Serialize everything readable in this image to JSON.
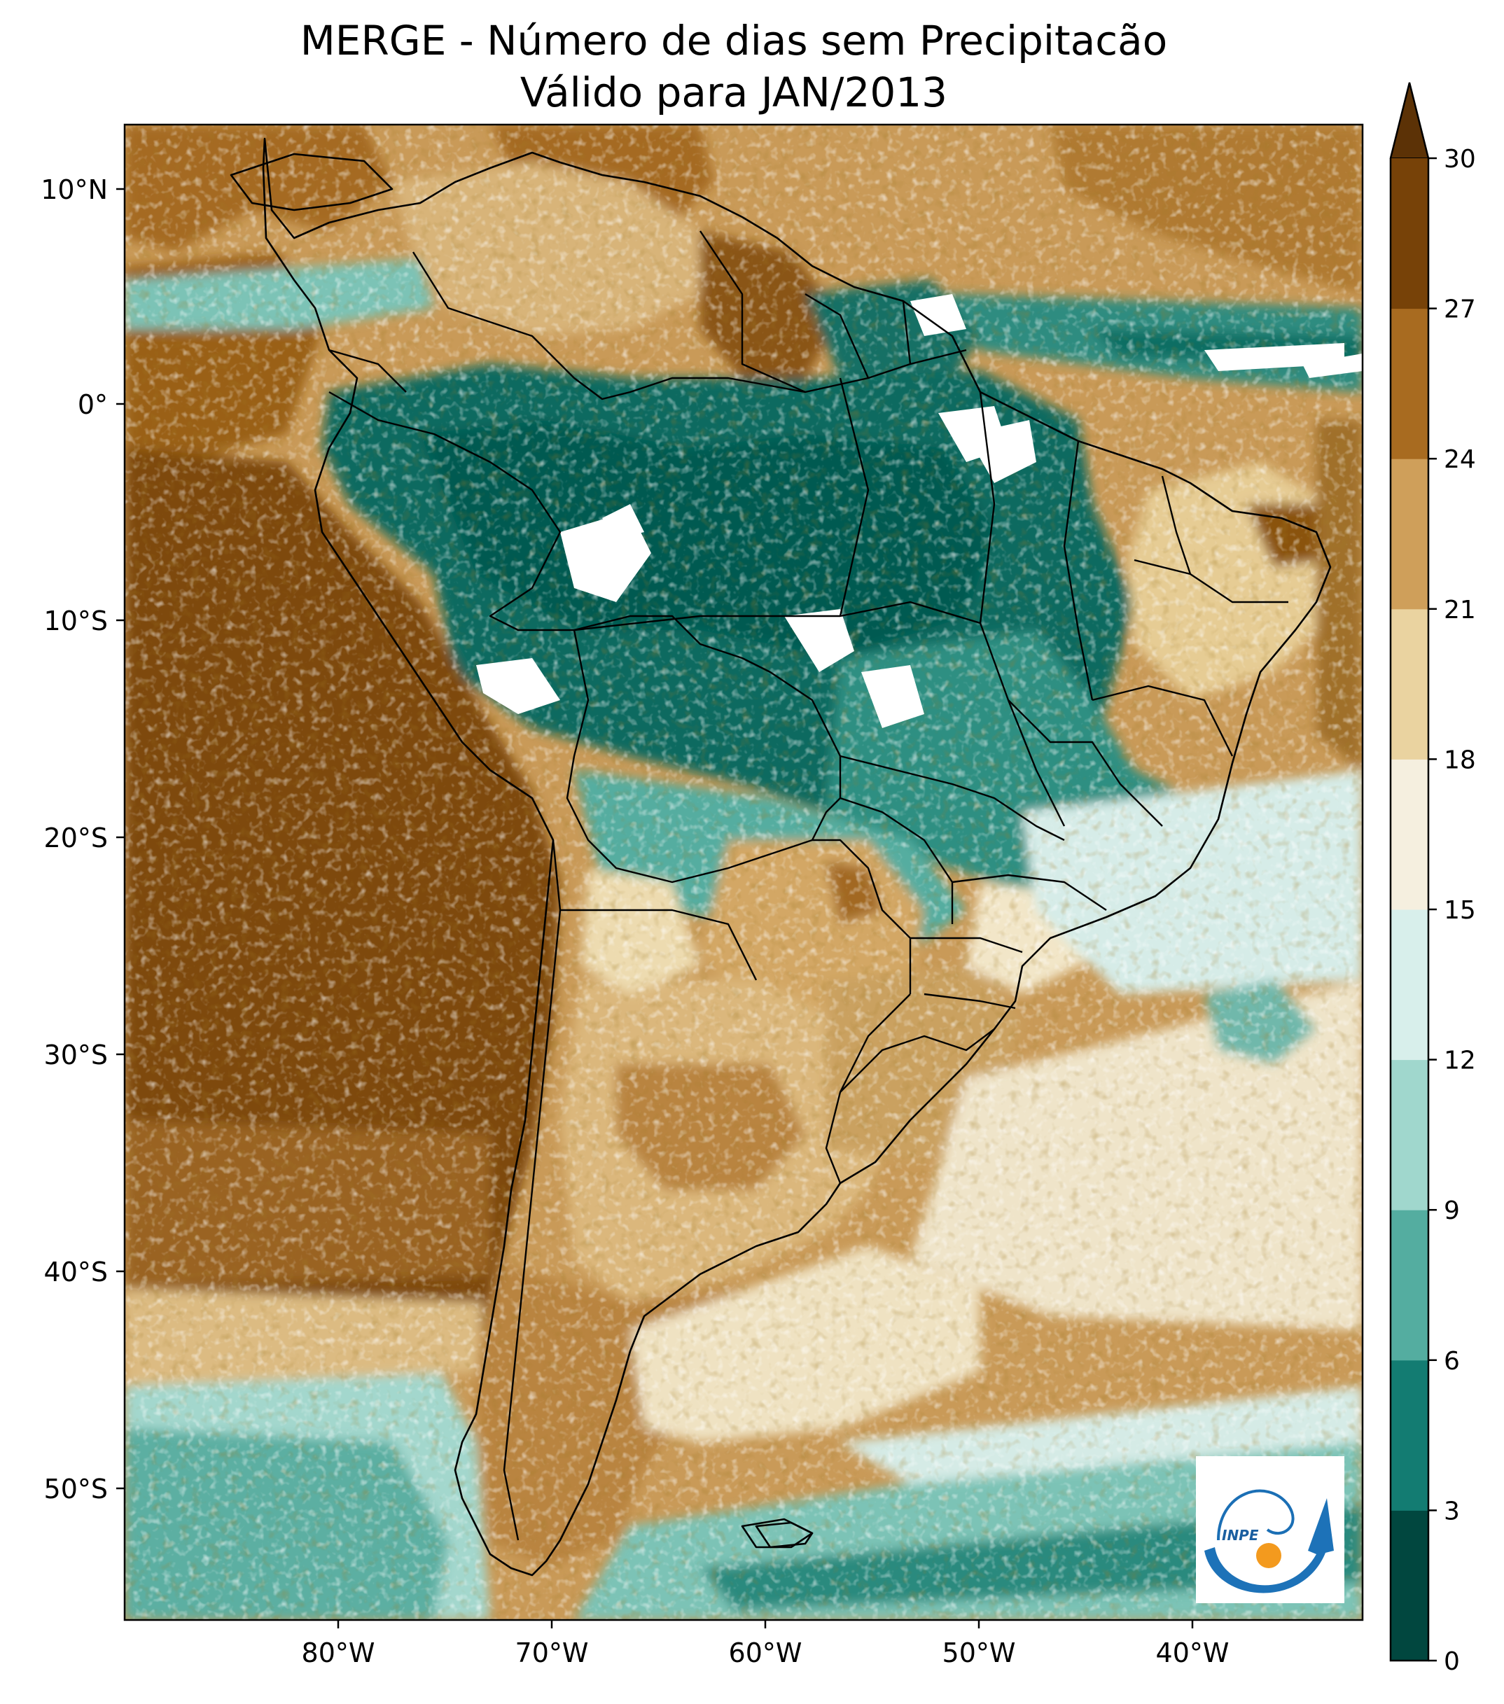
{
  "title": {
    "line1": "MERGE - Número de dias sem Precipitacão",
    "line2": "Válido para JAN/2013"
  },
  "map": {
    "lon_ticks": [
      "80°W",
      "70°W",
      "60°W",
      "50°W",
      "40°W"
    ],
    "lat_ticks": [
      "10°N",
      "0°",
      "10°S",
      "20°S",
      "30°S",
      "40°S",
      "50°S"
    ],
    "lon_range": [
      -90,
      -32
    ],
    "lat_range": [
      -56,
      13
    ],
    "regions": {
      "pacific_coastal": "dry (24-30 days)",
      "amazon": "wet (0-6 days)",
      "south_atlantic": "wet (6-12 days)",
      "argentina_pampas": "dry (18-27 days)"
    }
  },
  "colorbar": {
    "ticks": [
      "0",
      "3",
      "6",
      "9",
      "12",
      "15",
      "18",
      "21",
      "24",
      "27",
      "30"
    ],
    "levels": [
      0,
      3,
      6,
      9,
      12,
      15,
      18,
      21,
      24,
      27,
      30
    ],
    "colors": [
      "#01473f",
      "#137c72",
      "#54ada0",
      "#a0d7cd",
      "#d8efeb",
      "#f5efdf",
      "#ead3a0",
      "#cf9f5a",
      "#a86b20",
      "#774208"
    ],
    "extend_color": "#5c3206",
    "extend": "max"
  },
  "logo": {
    "text": "INPE"
  },
  "palette": {
    "ocean_dry": "#8a5510",
    "ocean_wet": "#3a9a8c"
  }
}
